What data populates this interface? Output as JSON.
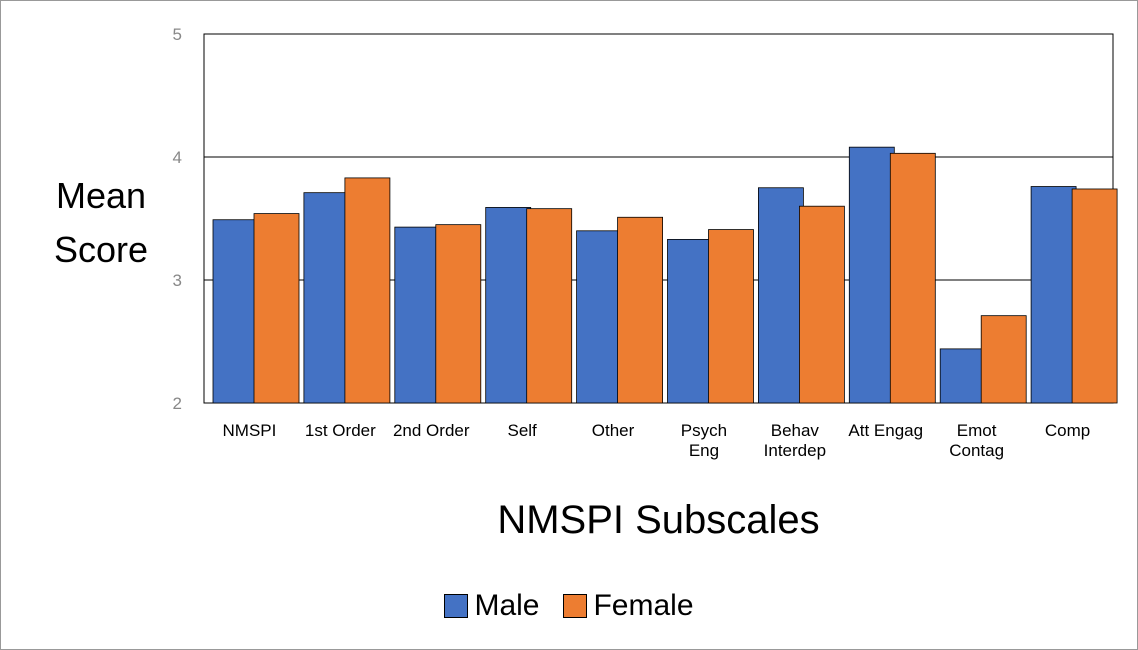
{
  "chart_data": {
    "type": "bar",
    "x_label": "NMSPI Subscales",
    "y_label": "Mean Score",
    "categories": [
      "NMSPI",
      "1st Order",
      "2nd Order",
      "Self",
      "Other",
      "Psych Eng",
      "Behav Interdep",
      "Att Engag",
      "Emot Contag",
      "Comp"
    ],
    "series": [
      {
        "name": "Male",
        "color": "#4472c4",
        "values": [
          3.49,
          3.71,
          3.43,
          3.59,
          3.4,
          3.33,
          3.75,
          4.08,
          2.44,
          3.76
        ]
      },
      {
        "name": "Female",
        "color": "#ed7d31",
        "values": [
          3.54,
          3.83,
          3.45,
          3.58,
          3.51,
          3.41,
          3.6,
          4.03,
          2.71,
          3.74
        ]
      }
    ],
    "ylim": [
      2,
      5
    ],
    "yticks": [
      2,
      3,
      4,
      5
    ],
    "grid": true,
    "legend": "bottom"
  }
}
